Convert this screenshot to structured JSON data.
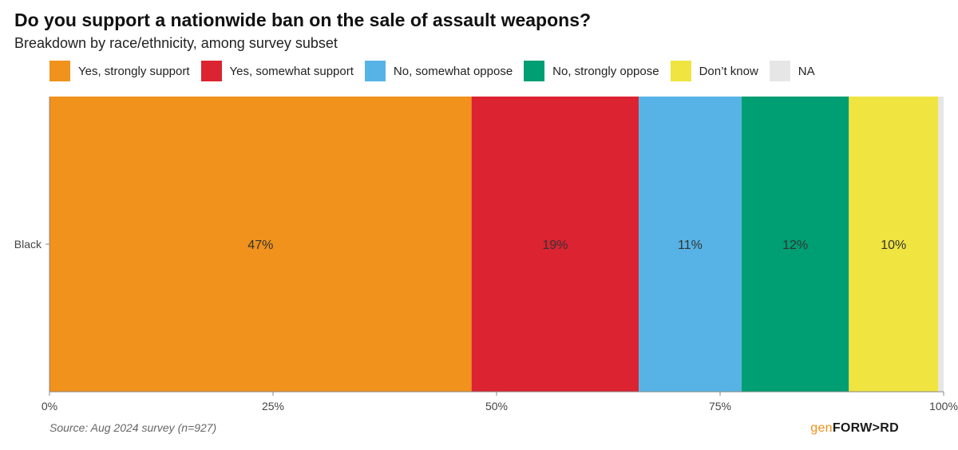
{
  "title": "Do you support a nationwide ban on the sale of assault weapons?",
  "subtitle": "Breakdown by race/ethnicity, among survey subset",
  "legend": [
    {
      "label": "Yes, strongly support",
      "color": "#f0921b"
    },
    {
      "label": "Yes, somewhat support",
      "color": "#dc2331"
    },
    {
      "label": "No, somewhat oppose",
      "color": "#57b3e6"
    },
    {
      "label": "No, strongly oppose",
      "color": "#009e73"
    },
    {
      "label": "Don’t know",
      "color": "#efe440"
    },
    {
      "label": "NA",
      "color": "#e6e6e6"
    }
  ],
  "chart_data": {
    "type": "bar",
    "orientation": "horizontal",
    "stacked": true,
    "categories": [
      "Black"
    ],
    "series": [
      {
        "name": "Yes, strongly support",
        "values": [
          47.2
        ],
        "label": "47%",
        "color": "#f0921b"
      },
      {
        "name": "Yes, somewhat support",
        "values": [
          18.7
        ],
        "label": "19%",
        "color": "#dc2331"
      },
      {
        "name": "No, somewhat oppose",
        "values": [
          11.5
        ],
        "label": "11%",
        "color": "#57b3e6"
      },
      {
        "name": "No, strongly oppose",
        "values": [
          12.0
        ],
        "label": "12%",
        "color": "#009e73"
      },
      {
        "name": "Don’t know",
        "values": [
          10.0
        ],
        "label": "10%",
        "color": "#efe440"
      },
      {
        "name": "NA",
        "values": [
          0.6
        ],
        "label": "",
        "color": "#e6e6e6"
      }
    ],
    "xlim": [
      0,
      100
    ],
    "xticks": [
      0,
      25,
      50,
      75,
      100
    ],
    "xtick_labels": [
      "0%",
      "25%",
      "50%",
      "75%",
      "100%"
    ],
    "title": "Do you support a nationwide ban on the sale of assault weapons?",
    "xlabel": "",
    "ylabel": "",
    "legend_position": "top"
  },
  "source": "Source: Aug 2024 survey (n=927)",
  "logo": {
    "part1": "gen",
    "part2": "FORW>RD"
  }
}
